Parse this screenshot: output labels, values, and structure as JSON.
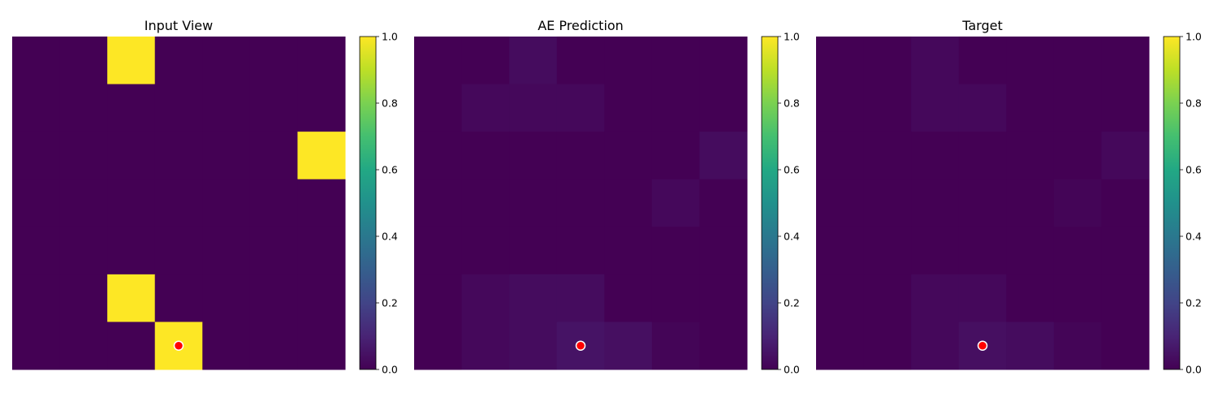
{
  "chart_data": [
    {
      "type": "heatmap",
      "title": "Input View",
      "colormap": "viridis",
      "clim": [
        0,
        1
      ],
      "colorbar_ticks": [
        "0.0",
        "0.2",
        "0.4",
        "0.6",
        "0.8",
        "1.0"
      ],
      "grid": [
        [
          0,
          0,
          1,
          0,
          0,
          0,
          0
        ],
        [
          0,
          0,
          0,
          0,
          0,
          0,
          0
        ],
        [
          0,
          0,
          0,
          0,
          0,
          0,
          1
        ],
        [
          0,
          0,
          0,
          0,
          0,
          0,
          0
        ],
        [
          0,
          0,
          0,
          0,
          0,
          0,
          0
        ],
        [
          0,
          0,
          1,
          0,
          0,
          0,
          0
        ],
        [
          0,
          0,
          0,
          1,
          0,
          0,
          0
        ]
      ],
      "marker": {
        "row": 6.5,
        "col": 3.5,
        "color": "#ff0000"
      }
    },
    {
      "type": "heatmap",
      "title": "AE Prediction",
      "colormap": "viridis",
      "clim": [
        0,
        1
      ],
      "colorbar_ticks": [
        "0.0",
        "0.2",
        "0.4",
        "0.6",
        "0.8",
        "1.0"
      ],
      "grid": [
        [
          0.0,
          0.0,
          0.03,
          0.0,
          0.0,
          0.0,
          0.0
        ],
        [
          0.0,
          0.02,
          0.02,
          0.02,
          0.0,
          0.0,
          0.0
        ],
        [
          0.0,
          0.0,
          0.0,
          0.0,
          0.0,
          0.0,
          0.03
        ],
        [
          0.0,
          0.0,
          0.0,
          0.0,
          0.0,
          0.02,
          0.0
        ],
        [
          0.0,
          0.0,
          0.0,
          0.0,
          0.0,
          0.0,
          0.0
        ],
        [
          0.0,
          0.02,
          0.03,
          0.03,
          0.0,
          0.0,
          0.0
        ],
        [
          0.0,
          0.02,
          0.03,
          0.05,
          0.04,
          0.01,
          0.0
        ]
      ],
      "marker": {
        "row": 6.5,
        "col": 3.5,
        "color": "#ff0000"
      }
    },
    {
      "type": "heatmap",
      "title": "Target",
      "colormap": "viridis",
      "clim": [
        0,
        1
      ],
      "colorbar_ticks": [
        "0.0",
        "0.2",
        "0.4",
        "0.6",
        "0.8",
        "1.0"
      ],
      "grid": [
        [
          0.0,
          0.0,
          0.02,
          0.0,
          0.0,
          0.0,
          0.0
        ],
        [
          0.0,
          0.0,
          0.02,
          0.02,
          0.0,
          0.0,
          0.0
        ],
        [
          0.0,
          0.0,
          0.0,
          0.0,
          0.0,
          0.0,
          0.02
        ],
        [
          0.0,
          0.0,
          0.0,
          0.0,
          0.0,
          0.01,
          0.0
        ],
        [
          0.0,
          0.0,
          0.0,
          0.0,
          0.0,
          0.0,
          0.0
        ],
        [
          0.0,
          0.0,
          0.02,
          0.02,
          0.0,
          0.0,
          0.0
        ],
        [
          0.0,
          0.0,
          0.02,
          0.04,
          0.03,
          0.01,
          0.0
        ]
      ],
      "marker": {
        "row": 6.5,
        "col": 3.5,
        "color": "#ff0000"
      }
    }
  ]
}
